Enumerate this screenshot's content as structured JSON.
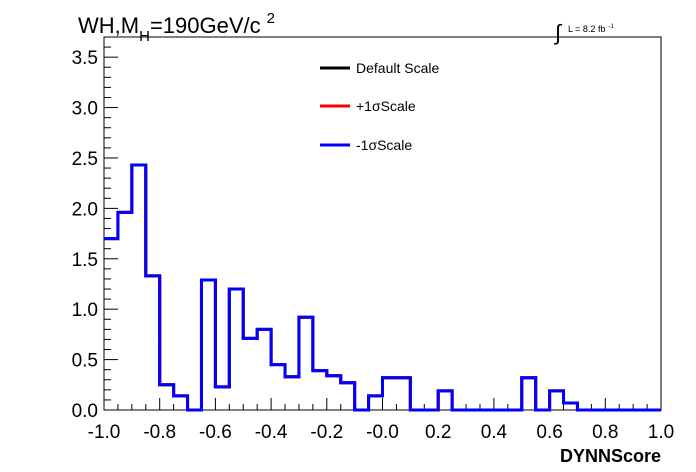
{
  "chart_data": {
    "type": "line",
    "title": {
      "main": "WH,M",
      "subscript": "H",
      "rest": "=190GeV/c",
      "superscript": "2"
    },
    "lumi_label": {
      "integral": "∫",
      "text": "L = 8.2 fb",
      "superscript": "-1"
    },
    "xlabel": "DYNNScore",
    "ylabel": "",
    "xlim": [
      -1.0,
      1.0
    ],
    "ylim": [
      0.0,
      3.7
    ],
    "x_ticks": [
      "-1.0",
      "-0.8",
      "-0.6",
      "-0.4",
      "-0.2",
      "-0.0",
      "0.2",
      "0.4",
      "0.6",
      "0.8",
      "1.0"
    ],
    "y_ticks": [
      "0.0",
      "0.5",
      "1.0",
      "1.5",
      "2.0",
      "2.5",
      "3.0",
      "3.5"
    ],
    "grid": false,
    "legend_position": "top-center",
    "series": [
      {
        "name": "Default Scale",
        "color": "#000000"
      },
      {
        "name": "+1σScale",
        "color": "#ff0000"
      },
      {
        "name": "-1σScale",
        "color": "#0000ff"
      }
    ],
    "bin_edges": [
      -1.0,
      -0.95,
      -0.9,
      -0.85,
      -0.8,
      -0.75,
      -0.7,
      -0.65,
      -0.6,
      -0.55,
      -0.5,
      -0.45,
      -0.4,
      -0.35,
      -0.3,
      -0.25,
      -0.2,
      -0.15,
      -0.1,
      -0.05,
      0.0,
      0.05,
      0.1,
      0.15,
      0.2,
      0.25,
      0.3,
      0.35,
      0.4,
      0.45,
      0.5,
      0.55,
      0.6,
      0.65,
      0.7,
      0.75,
      0.8,
      0.85,
      0.9,
      0.95,
      1.0
    ],
    "values": [
      1.7,
      1.96,
      2.43,
      1.33,
      0.25,
      0.14,
      0.0,
      1.29,
      0.23,
      1.2,
      0.71,
      0.8,
      0.45,
      0.33,
      0.92,
      0.39,
      0.34,
      0.27,
      0.0,
      0.14,
      0.32,
      0.32,
      0.0,
      0.0,
      0.19,
      0.0,
      0.0,
      0.0,
      0.0,
      0.0,
      0.32,
      0.0,
      0.19,
      0.07,
      0.0,
      0.0,
      0.0,
      0.0,
      0.0,
      0.0
    ]
  }
}
